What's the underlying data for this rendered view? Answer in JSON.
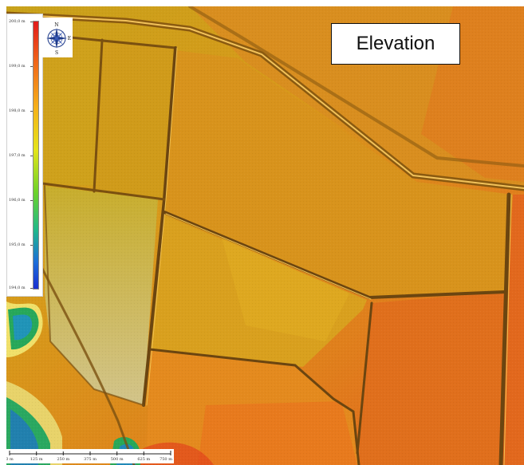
{
  "title": "Elevation",
  "legend": {
    "unit": "m",
    "min": 194.0,
    "max": 200.0,
    "labels": [
      "200,0 m",
      "199,0 m",
      "198,0 m",
      "197,0 m",
      "196,0 m",
      "195,0 m",
      "194,0 m"
    ]
  },
  "compass": {
    "north": "N",
    "south": "S",
    "east": "E",
    "west": "W"
  },
  "scale_bar": {
    "labels": [
      "0 m",
      "125 m",
      "250 m",
      "375 m",
      "500 m",
      "625 m",
      "750 m"
    ]
  },
  "colors": {
    "high": "#e11b1b",
    "mid_high": "#f06a1a",
    "mid": "#f5b01a",
    "mid_low": "#e4e41b",
    "low_green": "#6cd22a",
    "low_teal": "#21b88a",
    "lowest": "#1a2fd0"
  },
  "icons": {
    "compass": "compass-rose-icon"
  }
}
